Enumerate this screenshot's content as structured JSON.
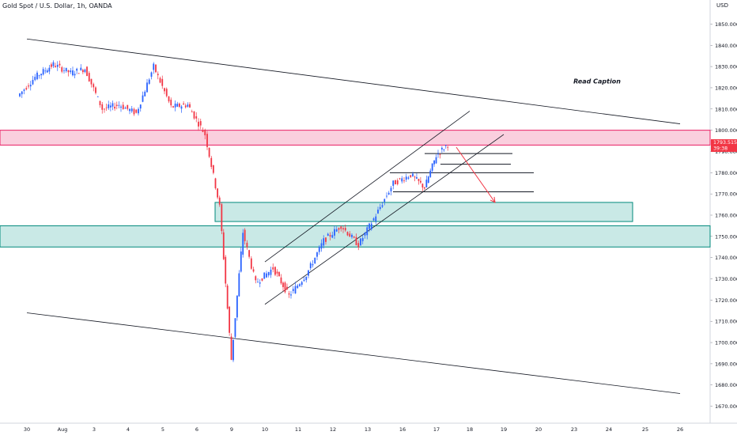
{
  "header": {
    "symbol_title": "Gold Spot / U.S. Dollar, 1h, OANDA"
  },
  "price_axis": {
    "unit": "USD",
    "range": [
      1665,
      1855
    ],
    "ticks": [
      "1850.000",
      "1840.000",
      "1830.000",
      "1820.000",
      "1810.000",
      "1800.000",
      "1790.000",
      "1780.000",
      "1770.000",
      "1760.000",
      "1750.000",
      "1740.000",
      "1730.000",
      "1720.000",
      "1710.000",
      "1700.000",
      "1690.000",
      "1680.000",
      "1670.000"
    ]
  },
  "time_axis": {
    "labels": [
      "30",
      "Aug",
      "3",
      "4",
      "5",
      "6",
      "9",
      "10",
      "11",
      "12",
      "13",
      "16",
      "17",
      "18",
      "19",
      "20",
      "23",
      "24",
      "25",
      "26"
    ]
  },
  "last_price": {
    "value": "1793.515",
    "countdown": "39:38"
  },
  "annotation": {
    "text": "Read Caption"
  },
  "colors": {
    "up": "#2962ff",
    "down": "#f23645",
    "red_zone": "#f8bbd0",
    "green_zone": "#b2dfdb",
    "green_border": "#00897b",
    "red_border": "#e91e63"
  },
  "chart_data": {
    "type": "candlestick",
    "title": "Gold Spot / U.S. Dollar, 1h, OANDA",
    "ylim": [
      1665,
      1855
    ],
    "series_close_path": [
      [
        "30",
        1816
      ],
      [
        "30",
        1825
      ],
      [
        "Aug",
        1831
      ],
      [
        "Aug",
        1827
      ],
      [
        "3",
        1829
      ],
      [
        "3",
        1810
      ],
      [
        "4",
        1812
      ],
      [
        "4",
        1808
      ],
      [
        "5",
        1830
      ],
      [
        "5",
        1811
      ],
      [
        "6",
        1812
      ],
      [
        "6",
        1798
      ],
      [
        "9",
        1764
      ],
      [
        "9",
        1692
      ],
      [
        "9",
        1752
      ],
      [
        "10",
        1728
      ],
      [
        "10",
        1735
      ],
      [
        "11",
        1722
      ],
      [
        "11",
        1732
      ],
      [
        "12",
        1748
      ],
      [
        "12",
        1755
      ],
      [
        "13",
        1746
      ],
      [
        "13",
        1760
      ],
      [
        "16",
        1775
      ],
      [
        "16",
        1779
      ],
      [
        "17",
        1773
      ],
      [
        "17",
        1788
      ],
      [
        "17",
        1793.5
      ]
    ],
    "zones": [
      {
        "label": "resistance",
        "from": 1793,
        "to": 1800
      },
      {
        "label": "support-1",
        "from": 1757,
        "to": 1766
      },
      {
        "label": "support-2",
        "from": 1745,
        "to": 1755
      }
    ],
    "levels": [
      1789,
      1784,
      1780,
      1771
    ],
    "trendlines": [
      {
        "name": "upper-descending",
        "from": [
          "30",
          1843
        ],
        "to": [
          "26",
          1803
        ]
      },
      {
        "name": "lower-descending",
        "from": [
          "30",
          1714
        ],
        "to": [
          "26",
          1676
        ]
      },
      {
        "name": "channel-upper",
        "from": [
          "10",
          1738
        ],
        "to": [
          "18",
          1809
        ]
      },
      {
        "name": "channel-lower",
        "from": [
          "10",
          1718
        ],
        "to": [
          "19",
          1798
        ]
      }
    ],
    "projection_arrow": {
      "from": 1792,
      "to": 1766
    }
  }
}
